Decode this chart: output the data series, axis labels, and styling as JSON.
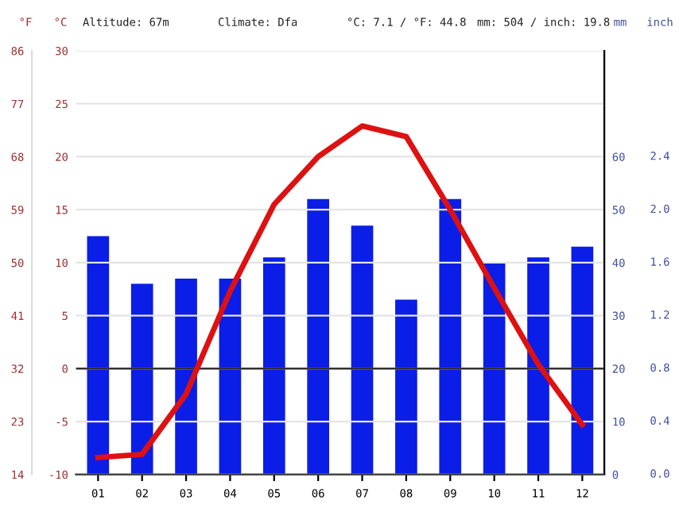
{
  "chart_data": {
    "type": "bar",
    "categories": [
      "01",
      "02",
      "03",
      "04",
      "05",
      "06",
      "07",
      "08",
      "09",
      "10",
      "11",
      "12"
    ],
    "series": [
      {
        "axis": "y2",
        "color": "#0a1ee8",
        "values": [
          45,
          36,
          37,
          37,
          41,
          52,
          47,
          33,
          52,
          40,
          41,
          43
        ]
      },
      {
        "type": "line",
        "axis": "y",
        "color": "#dd1111",
        "values": [
          -8.4,
          -8.1,
          -2.4,
          7.3,
          15.5,
          20.0,
          22.9,
          21.9,
          15.0,
          7.6,
          0.4,
          -5.3
        ]
      }
    ],
    "ylabel": "°C",
    "y2label": "mm",
    "y3label": "°F",
    "ylim": [
      -10,
      30
    ],
    "yticks": [
      -10,
      -5,
      0,
      5,
      10,
      15,
      20,
      25,
      30
    ],
    "y2lim": [
      0,
      80
    ],
    "y2ticks": [
      0,
      10,
      20,
      30,
      40,
      50,
      60
    ],
    "y3lim": [
      14,
      86
    ],
    "y3ticks": [
      14,
      23,
      32,
      41,
      50,
      59,
      68,
      77,
      86
    ],
    "ref_lines": [
      {
        "axis": "y",
        "value": 0,
        "color": "#222222"
      }
    ],
    "grid": "y",
    "marker": "none",
    "line_style": "solid",
    "annotations": [
      "Altitude: 67m",
      "Climate: Dfa",
      "°C: 7.1 / °F: 44.8",
      "mm: 504 / inch: 19.8",
      "inch",
      "0.0",
      "0.4",
      "0.8",
      "1.2",
      "1.6",
      "2.0",
      "2.4"
    ]
  }
}
